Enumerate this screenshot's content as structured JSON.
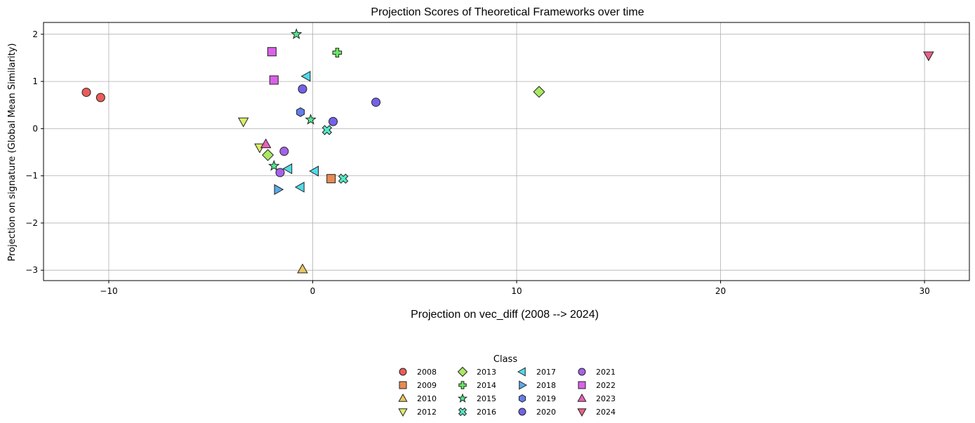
{
  "chart_data": {
    "type": "scatter",
    "title": "Projection Scores of Theoretical Frameworks over time",
    "xlabel": "Projection on vec_diff (2008 --> 2024)",
    "ylabel": "Projection on signature (Global Mean Similarity)",
    "xlim": [
      -13.2,
      32.2
    ],
    "ylim": [
      -3.22,
      2.25
    ],
    "x_ticks": [
      -10,
      0,
      10,
      20,
      30
    ],
    "x_tick_labels": [
      "−10",
      "0",
      "10",
      "20",
      "30"
    ],
    "y_ticks": [
      -3,
      -2,
      -1,
      0,
      1,
      2
    ],
    "y_tick_labels": [
      "−3",
      "−2",
      "−1",
      "0",
      "1",
      "2"
    ],
    "grid": true,
    "legend": {
      "title": "Class",
      "placement": "bottom-center",
      "columns": 4
    },
    "series": [
      {
        "name": "2008",
        "marker": "circle",
        "color": "#e8544f",
        "points": [
          [
            -11.1,
            0.77
          ],
          [
            -10.4,
            0.66
          ]
        ]
      },
      {
        "name": "2009",
        "marker": "square",
        "color": "#e8854a",
        "points": [
          [
            0.9,
            -1.06
          ]
        ]
      },
      {
        "name": "2010",
        "marker": "triangle-up",
        "color": "#e8c45a",
        "points": [
          [
            -0.5,
            -2.98
          ]
        ]
      },
      {
        "name": "2012",
        "marker": "triangle-down",
        "color": "#d9ec62",
        "points": [
          [
            -3.4,
            0.15
          ],
          [
            -2.6,
            -0.4
          ]
        ]
      },
      {
        "name": "2013",
        "marker": "diamond",
        "color": "#a4e85a",
        "points": [
          [
            11.1,
            0.78
          ],
          [
            -2.2,
            -0.56
          ]
        ]
      },
      {
        "name": "2014",
        "marker": "plus",
        "color": "#62e85a",
        "points": [
          [
            1.2,
            1.61
          ]
        ]
      },
      {
        "name": "2015",
        "marker": "star",
        "color": "#49e88c",
        "points": [
          [
            -0.8,
            2.0
          ],
          [
            -0.1,
            0.19
          ],
          [
            -1.9,
            -0.79
          ]
        ]
      },
      {
        "name": "2016",
        "marker": "x",
        "color": "#4de8c6",
        "points": [
          [
            0.7,
            -0.03
          ],
          [
            1.5,
            -1.06
          ]
        ]
      },
      {
        "name": "2017",
        "marker": "triangle-left",
        "color": "#47d9e8",
        "points": [
          [
            -0.3,
            1.11
          ],
          [
            -1.2,
            -0.85
          ],
          [
            0.1,
            -0.9
          ],
          [
            -0.6,
            -1.24
          ]
        ]
      },
      {
        "name": "2018",
        "marker": "triangle-right",
        "color": "#4fa6e8",
        "points": [
          [
            -1.7,
            -1.29
          ]
        ]
      },
      {
        "name": "2019",
        "marker": "hexagon",
        "color": "#5a78e8",
        "points": [
          [
            -0.6,
            0.35
          ]
        ]
      },
      {
        "name": "2020",
        "marker": "circle",
        "color": "#6b5ae8",
        "points": [
          [
            -0.5,
            0.84
          ],
          [
            1.0,
            0.15
          ],
          [
            3.1,
            0.56
          ]
        ]
      },
      {
        "name": "2021",
        "marker": "circle",
        "color": "#a05ae8",
        "points": [
          [
            -1.4,
            -0.48
          ],
          [
            -1.6,
            -0.93
          ]
        ]
      },
      {
        "name": "2022",
        "marker": "square",
        "color": "#d85ae8",
        "points": [
          [
            -2.0,
            1.63
          ],
          [
            -1.9,
            1.03
          ]
        ]
      },
      {
        "name": "2023",
        "marker": "triangle-up",
        "color": "#e85ab8",
        "points": [
          [
            -2.3,
            -0.33
          ]
        ]
      },
      {
        "name": "2024",
        "marker": "triangle-down",
        "color": "#e85a82",
        "points": [
          [
            30.2,
            1.55
          ]
        ]
      }
    ]
  }
}
